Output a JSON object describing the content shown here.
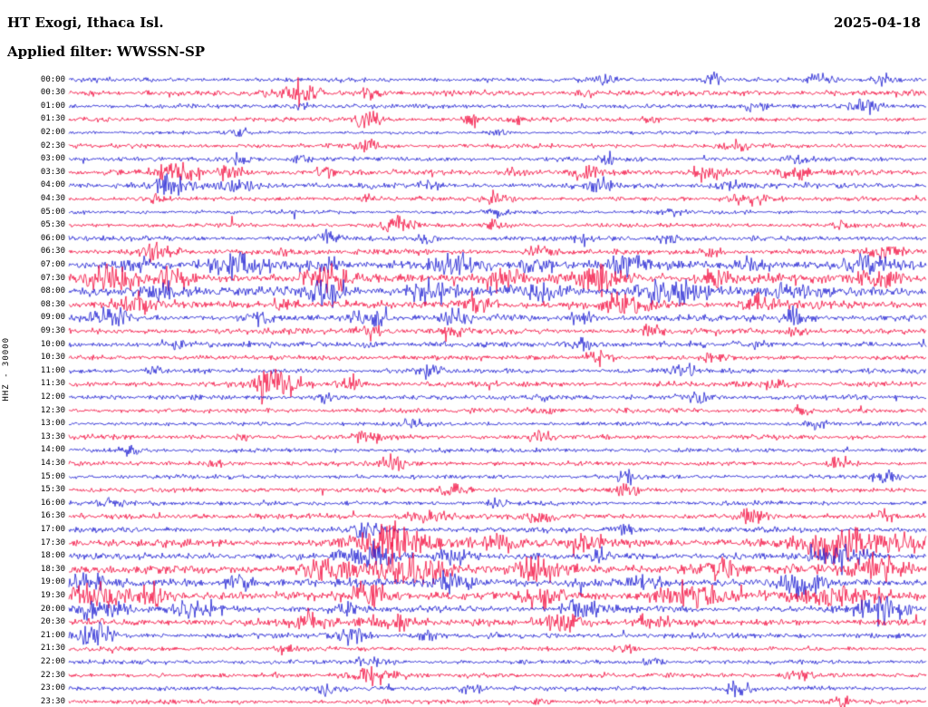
{
  "header": {
    "title": "HT Exogi, Ithaca Isl.",
    "date": "2025-04-18",
    "filter_label": "Applied filter: WWSSN-SP"
  },
  "axis": {
    "label": "HHZ - 30000"
  },
  "colors": {
    "blue": "#1818d0",
    "red": "#f20538",
    "background": "#ffffff",
    "text": "#000000"
  },
  "chart_data": {
    "type": "line",
    "subtype": "helicorder-seismogram",
    "title": "HT Exogi, Ithaca Isl.",
    "date": "2025-04-18",
    "filter": "WWSSN-SP",
    "minutes_per_row": 30,
    "rows_count": 48,
    "legend": "alternating blue/red half-hour traces, amplitudes in relative pixels",
    "rows": [
      {
        "time": "00:00",
        "color": "blue",
        "base": 2.0,
        "bursts": [
          [
            0.62,
            0.01,
            5
          ],
          [
            0.75,
            0.008,
            6
          ],
          [
            0.88,
            0.01,
            7
          ],
          [
            0.95,
            0.012,
            6
          ]
        ]
      },
      {
        "time": "00:30",
        "color": "red",
        "base": 2.5,
        "bursts": [
          [
            0.27,
            0.015,
            14
          ],
          [
            0.35,
            0.01,
            6
          ],
          [
            0.6,
            0.008,
            4
          ]
        ]
      },
      {
        "time": "01:00",
        "color": "blue",
        "base": 2.0,
        "bursts": [
          [
            0.27,
            0.008,
            5
          ],
          [
            0.8,
            0.01,
            7
          ],
          [
            0.93,
            0.012,
            5
          ]
        ]
      },
      {
        "time": "01:30",
        "color": "red",
        "base": 2.0,
        "bursts": [
          [
            0.35,
            0.01,
            8
          ],
          [
            0.47,
            0.008,
            7
          ],
          [
            0.52,
            0.006,
            5
          ],
          [
            0.68,
            0.008,
            4
          ]
        ]
      },
      {
        "time": "02:00",
        "color": "blue",
        "base": 1.5,
        "bursts": [
          [
            0.2,
            0.01,
            3
          ],
          [
            0.5,
            0.008,
            3
          ]
        ]
      },
      {
        "time": "02:30",
        "color": "red",
        "base": 2.0,
        "bursts": [
          [
            0.35,
            0.008,
            6
          ],
          [
            0.78,
            0.01,
            5
          ]
        ]
      },
      {
        "time": "03:00",
        "color": "blue",
        "base": 2.0,
        "bursts": [
          [
            0.2,
            0.012,
            6
          ],
          [
            0.27,
            0.008,
            5
          ],
          [
            0.63,
            0.008,
            4
          ],
          [
            0.85,
            0.008,
            4
          ]
        ]
      },
      {
        "time": "03:30",
        "color": "red",
        "base": 2.5,
        "bursts": [
          [
            0.13,
            0.02,
            8
          ],
          [
            0.19,
            0.01,
            6
          ],
          [
            0.3,
            0.008,
            5
          ],
          [
            0.52,
            0.01,
            7
          ],
          [
            0.6,
            0.012,
            7
          ],
          [
            0.75,
            0.015,
            9
          ],
          [
            0.84,
            0.012,
            8
          ]
        ]
      },
      {
        "time": "04:00",
        "color": "blue",
        "base": 2.5,
        "bursts": [
          [
            0.12,
            0.015,
            7
          ],
          [
            0.2,
            0.02,
            6
          ],
          [
            0.42,
            0.008,
            5
          ],
          [
            0.62,
            0.01,
            5
          ],
          [
            0.77,
            0.012,
            6
          ]
        ]
      },
      {
        "time": "04:30",
        "color": "red",
        "base": 2.0,
        "bursts": [
          [
            0.1,
            0.008,
            5
          ],
          [
            0.35,
            0.008,
            5
          ],
          [
            0.5,
            0.01,
            6
          ],
          [
            0.8,
            0.02,
            6
          ]
        ]
      },
      {
        "time": "05:00",
        "color": "blue",
        "base": 1.8,
        "bursts": [
          [
            0.5,
            0.008,
            6
          ],
          [
            0.7,
            0.008,
            4
          ]
        ]
      },
      {
        "time": "05:30",
        "color": "red",
        "base": 2.0,
        "bursts": [
          [
            0.38,
            0.015,
            6
          ],
          [
            0.5,
            0.008,
            5
          ],
          [
            0.9,
            0.008,
            4
          ]
        ]
      },
      {
        "time": "06:00",
        "color": "blue",
        "base": 2.2,
        "bursts": [
          [
            0.3,
            0.01,
            6
          ],
          [
            0.42,
            0.008,
            6
          ],
          [
            0.6,
            0.008,
            4
          ],
          [
            0.7,
            0.01,
            5
          ]
        ]
      },
      {
        "time": "06:30",
        "color": "red",
        "base": 2.5,
        "bursts": [
          [
            0.1,
            0.015,
            6
          ],
          [
            0.25,
            0.01,
            6
          ],
          [
            0.55,
            0.012,
            6
          ],
          [
            0.75,
            0.01,
            5
          ],
          [
            0.95,
            0.015,
            7
          ]
        ]
      },
      {
        "time": "07:00",
        "color": "blue",
        "base": 3.5,
        "bursts": [
          [
            0.08,
            0.02,
            8
          ],
          [
            0.2,
            0.025,
            10
          ],
          [
            0.3,
            0.015,
            8
          ],
          [
            0.45,
            0.02,
            8
          ],
          [
            0.55,
            0.015,
            8
          ],
          [
            0.65,
            0.02,
            9
          ],
          [
            0.8,
            0.015,
            7
          ],
          [
            0.93,
            0.02,
            9
          ]
        ]
      },
      {
        "time": "07:30",
        "color": "red",
        "base": 4.0,
        "bursts": [
          [
            0.05,
            0.02,
            12
          ],
          [
            0.12,
            0.015,
            10
          ],
          [
            0.3,
            0.02,
            9
          ],
          [
            0.5,
            0.02,
            10
          ],
          [
            0.62,
            0.02,
            10
          ],
          [
            0.75,
            0.015,
            8
          ],
          [
            0.95,
            0.02,
            12
          ]
        ]
      },
      {
        "time": "08:00",
        "color": "blue",
        "base": 4.0,
        "bursts": [
          [
            0.1,
            0.02,
            9
          ],
          [
            0.3,
            0.02,
            12
          ],
          [
            0.42,
            0.015,
            10
          ],
          [
            0.55,
            0.02,
            9
          ],
          [
            0.7,
            0.025,
            12
          ],
          [
            0.85,
            0.02,
            9
          ]
        ]
      },
      {
        "time": "08:30",
        "color": "red",
        "base": 3.5,
        "bursts": [
          [
            0.08,
            0.015,
            8
          ],
          [
            0.25,
            0.01,
            7
          ],
          [
            0.48,
            0.015,
            10
          ],
          [
            0.65,
            0.02,
            9
          ],
          [
            0.8,
            0.015,
            8
          ]
        ]
      },
      {
        "time": "09:00",
        "color": "blue",
        "base": 3.0,
        "bursts": [
          [
            0.05,
            0.015,
            8
          ],
          [
            0.22,
            0.01,
            7
          ],
          [
            0.35,
            0.015,
            10
          ],
          [
            0.45,
            0.01,
            8
          ],
          [
            0.6,
            0.01,
            6
          ],
          [
            0.85,
            0.012,
            8
          ]
        ]
      },
      {
        "time": "09:30",
        "color": "red",
        "base": 2.5,
        "bursts": [
          [
            0.35,
            0.012,
            9
          ],
          [
            0.45,
            0.008,
            6
          ],
          [
            0.68,
            0.01,
            6
          ],
          [
            0.85,
            0.01,
            5
          ]
        ]
      },
      {
        "time": "10:00",
        "color": "blue",
        "base": 2.5,
        "bursts": [
          [
            0.13,
            0.008,
            6
          ],
          [
            0.35,
            0.01,
            6
          ],
          [
            0.6,
            0.012,
            7
          ],
          [
            0.8,
            0.008,
            5
          ]
        ]
      },
      {
        "time": "10:30",
        "color": "red",
        "base": 2.2,
        "bursts": [
          [
            0.62,
            0.012,
            8
          ],
          [
            0.75,
            0.008,
            5
          ]
        ]
      },
      {
        "time": "11:00",
        "color": "blue",
        "base": 2.2,
        "bursts": [
          [
            0.1,
            0.008,
            5
          ],
          [
            0.42,
            0.01,
            6
          ],
          [
            0.72,
            0.01,
            6
          ]
        ]
      },
      {
        "time": "11:30",
        "color": "red",
        "base": 2.5,
        "bursts": [
          [
            0.24,
            0.02,
            12
          ],
          [
            0.33,
            0.01,
            8
          ],
          [
            0.82,
            0.012,
            8
          ]
        ]
      },
      {
        "time": "12:00",
        "color": "blue",
        "base": 2.2,
        "bursts": [
          [
            0.3,
            0.008,
            6
          ],
          [
            0.55,
            0.008,
            5
          ],
          [
            0.73,
            0.01,
            7
          ]
        ]
      },
      {
        "time": "12:30",
        "color": "red",
        "base": 2.2,
        "bursts": [
          [
            0.55,
            0.01,
            6
          ],
          [
            0.85,
            0.008,
            5
          ]
        ]
      },
      {
        "time": "13:00",
        "color": "blue",
        "base": 2.0,
        "bursts": [
          [
            0.4,
            0.008,
            5
          ],
          [
            0.87,
            0.01,
            6
          ]
        ]
      },
      {
        "time": "13:30",
        "color": "red",
        "base": 2.2,
        "bursts": [
          [
            0.2,
            0.008,
            5
          ],
          [
            0.35,
            0.01,
            6
          ],
          [
            0.55,
            0.008,
            5
          ]
        ]
      },
      {
        "time": "14:00",
        "color": "blue",
        "base": 2.0,
        "bursts": [
          [
            0.07,
            0.008,
            6
          ]
        ]
      },
      {
        "time": "14:30",
        "color": "red",
        "base": 2.0,
        "bursts": [
          [
            0.17,
            0.008,
            4
          ],
          [
            0.38,
            0.012,
            7
          ],
          [
            0.9,
            0.01,
            6
          ]
        ]
      },
      {
        "time": "15:00",
        "color": "blue",
        "base": 2.0,
        "bursts": [
          [
            0.65,
            0.008,
            5
          ],
          [
            0.95,
            0.01,
            6
          ]
        ]
      },
      {
        "time": "15:30",
        "color": "red",
        "base": 2.2,
        "bursts": [
          [
            0.45,
            0.01,
            6
          ],
          [
            0.65,
            0.008,
            5
          ]
        ]
      },
      {
        "time": "16:00",
        "color": "blue",
        "base": 2.0,
        "bursts": [
          [
            0.05,
            0.008,
            5
          ],
          [
            0.5,
            0.008,
            5
          ]
        ]
      },
      {
        "time": "16:30",
        "color": "red",
        "base": 2.5,
        "bursts": [
          [
            0.42,
            0.015,
            8
          ],
          [
            0.55,
            0.01,
            6
          ],
          [
            0.8,
            0.012,
            7
          ],
          [
            0.95,
            0.01,
            6
          ]
        ]
      },
      {
        "time": "17:00",
        "color": "blue",
        "base": 2.5,
        "bursts": [
          [
            0.35,
            0.012,
            9
          ],
          [
            0.65,
            0.01,
            7
          ]
        ]
      },
      {
        "time": "17:30",
        "color": "red",
        "base": 3.5,
        "bursts": [
          [
            0.38,
            0.03,
            14
          ],
          [
            0.5,
            0.02,
            10
          ],
          [
            0.6,
            0.015,
            8
          ],
          [
            0.9,
            0.03,
            14
          ],
          [
            0.98,
            0.02,
            10
          ]
        ]
      },
      {
        "time": "18:00",
        "color": "blue",
        "base": 3.0,
        "bursts": [
          [
            0.35,
            0.02,
            10
          ],
          [
            0.45,
            0.015,
            9
          ],
          [
            0.62,
            0.008,
            6
          ],
          [
            0.9,
            0.02,
            12
          ]
        ]
      },
      {
        "time": "18:30",
        "color": "red",
        "base": 4.0,
        "bursts": [
          [
            0.3,
            0.02,
            12
          ],
          [
            0.4,
            0.03,
            14
          ],
          [
            0.55,
            0.02,
            10
          ],
          [
            0.75,
            0.02,
            10
          ],
          [
            0.95,
            0.025,
            12
          ]
        ]
      },
      {
        "time": "19:00",
        "color": "blue",
        "base": 3.5,
        "bursts": [
          [
            0.02,
            0.015,
            10
          ],
          [
            0.2,
            0.012,
            9
          ],
          [
            0.45,
            0.02,
            10
          ],
          [
            0.68,
            0.015,
            8
          ],
          [
            0.85,
            0.02,
            10
          ]
        ]
      },
      {
        "time": "19:30",
        "color": "red",
        "base": 4.0,
        "bursts": [
          [
            0.03,
            0.02,
            14
          ],
          [
            0.1,
            0.015,
            10
          ],
          [
            0.35,
            0.02,
            10
          ],
          [
            0.55,
            0.015,
            9
          ],
          [
            0.72,
            0.025,
            12
          ],
          [
            0.9,
            0.03,
            14
          ]
        ]
      },
      {
        "time": "20:00",
        "color": "blue",
        "base": 3.0,
        "bursts": [
          [
            0.03,
            0.02,
            12
          ],
          [
            0.15,
            0.015,
            9
          ],
          [
            0.32,
            0.01,
            7
          ],
          [
            0.6,
            0.015,
            9
          ],
          [
            0.95,
            0.02,
            12
          ]
        ]
      },
      {
        "time": "20:30",
        "color": "red",
        "base": 3.0,
        "bursts": [
          [
            0.28,
            0.015,
            8
          ],
          [
            0.38,
            0.02,
            10
          ],
          [
            0.58,
            0.02,
            10
          ],
          [
            0.68,
            0.015,
            8
          ]
        ]
      },
      {
        "time": "21:00",
        "color": "blue",
        "base": 2.5,
        "bursts": [
          [
            0.03,
            0.015,
            10
          ],
          [
            0.33,
            0.012,
            8
          ],
          [
            0.42,
            0.008,
            6
          ]
        ]
      },
      {
        "time": "21:30",
        "color": "red",
        "base": 2.0,
        "bursts": [
          [
            0.25,
            0.008,
            4
          ],
          [
            0.65,
            0.008,
            4
          ]
        ]
      },
      {
        "time": "22:00",
        "color": "blue",
        "base": 2.0,
        "bursts": [
          [
            0.35,
            0.015,
            4
          ],
          [
            0.68,
            0.008,
            5
          ]
        ]
      },
      {
        "time": "22:30",
        "color": "red",
        "base": 2.2,
        "bursts": [
          [
            0.35,
            0.02,
            9
          ],
          [
            0.85,
            0.01,
            6
          ]
        ]
      },
      {
        "time": "23:00",
        "color": "blue",
        "base": 2.0,
        "bursts": [
          [
            0.3,
            0.01,
            5
          ],
          [
            0.47,
            0.01,
            6
          ],
          [
            0.78,
            0.012,
            7
          ]
        ]
      },
      {
        "time": "23:30",
        "color": "red",
        "base": 2.0,
        "bursts": [
          [
            0.55,
            0.008,
            4
          ],
          [
            0.9,
            0.008,
            4
          ]
        ]
      }
    ]
  }
}
